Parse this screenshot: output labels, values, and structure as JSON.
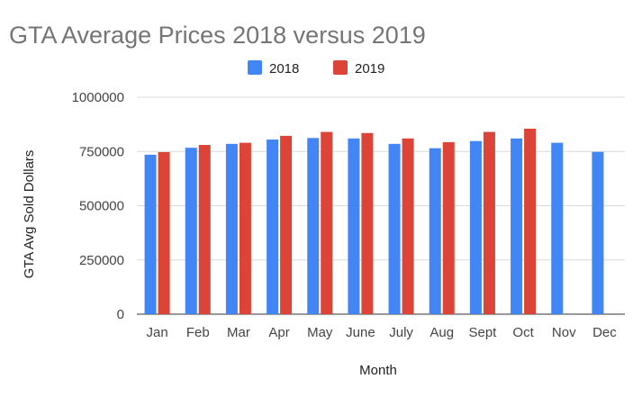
{
  "chart_data": {
    "type": "bar",
    "title": "GTA Average Prices   2018 versus 2019",
    "xlabel": "Month",
    "ylabel": "GTA Avg Sold Dollars",
    "ylim": [
      0,
      1000000
    ],
    "yticks": [
      "0",
      "250000",
      "500000",
      "750000",
      "1000000"
    ],
    "grid": true,
    "legend_position": "top",
    "categories": [
      "Jan",
      "Feb",
      "Mar",
      "Apr",
      "May",
      "June",
      "July",
      "Aug",
      "Sept",
      "Oct",
      "Nov",
      "Dec"
    ],
    "series": [
      {
        "name": "2018",
        "color": "#4285f4",
        "values": [
          735000,
          767000,
          785000,
          805000,
          812000,
          810000,
          785000,
          765000,
          798000,
          810000,
          790000,
          748000
        ]
      },
      {
        "name": "2019",
        "color": "#db4437",
        "values": [
          747000,
          780000,
          790000,
          822000,
          840000,
          835000,
          810000,
          793000,
          840000,
          855000,
          null,
          null
        ]
      }
    ]
  }
}
